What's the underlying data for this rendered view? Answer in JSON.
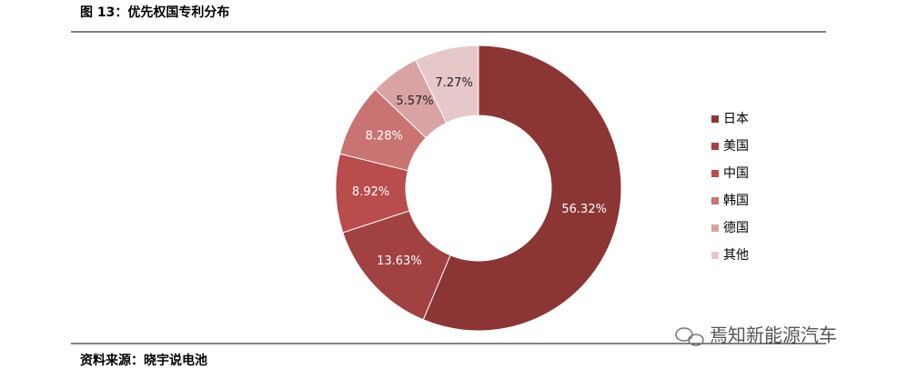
{
  "chart_data": {
    "type": "pie",
    "title": "图 13：优先权国专利分布",
    "categories": [
      "日本",
      "美国",
      "中国",
      "韩国",
      "德国",
      "其他"
    ],
    "values": [
      56.32,
      13.63,
      8.92,
      8.28,
      5.57,
      7.27
    ],
    "value_labels": [
      "56.32%",
      "13.63%",
      "8.92%",
      "8.28%",
      "5.57%",
      "7.27%"
    ],
    "colors": [
      "#8b3535",
      "#a24141",
      "#b94c4c",
      "#c97373",
      "#d9a3a3",
      "#e7c8c8"
    ],
    "legend": "right"
  },
  "footer": {
    "source": "资料来源：晓宇说电池",
    "watermark": "焉知新能源汽车"
  }
}
